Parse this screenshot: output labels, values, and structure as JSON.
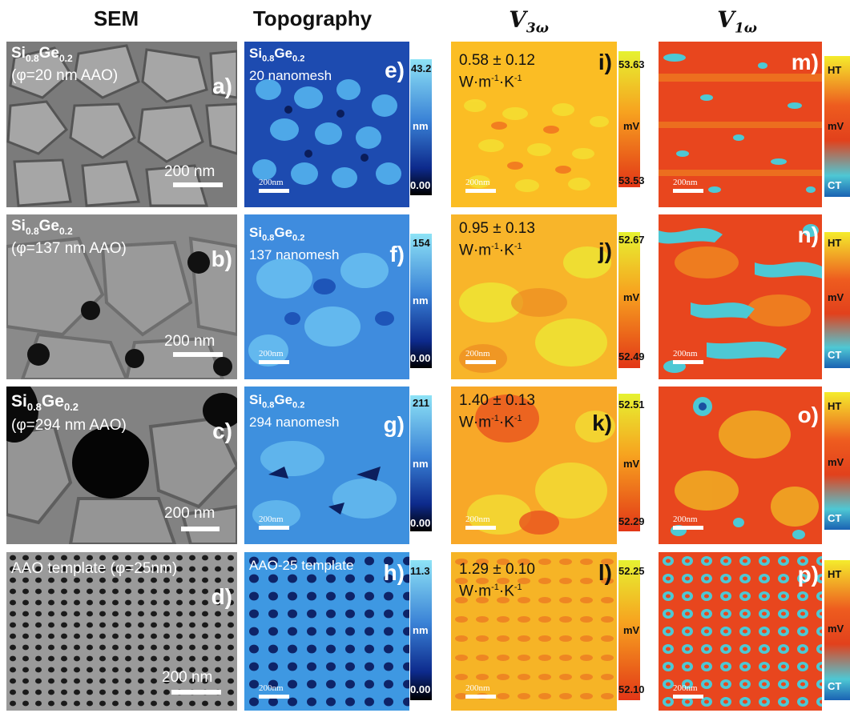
{
  "headers": {
    "sem": "SEM",
    "topo": "Topography",
    "v3_main": "V",
    "v3_sub": "3ω",
    "v1_main": "V",
    "v1_sub": "1ω"
  },
  "rows": [
    {
      "sem": {
        "label": "a)",
        "material_si": "Si",
        "si_sub": "0.8",
        "material_ge": "Ge",
        "ge_sub": "0.2",
        "desc": "(φ=20 nm AAO)",
        "scale": "200 nm"
      },
      "topo": {
        "label": "e)",
        "material_si": "Si",
        "si_sub": "0.8",
        "material_ge": "Ge",
        "ge_sub": "0.2",
        "desc": "20 nanomesh",
        "scale": "200nm",
        "cb_max": "43.2",
        "cb_unit": "nm",
        "cb_min": "0.00"
      },
      "v3": {
        "label": "i)",
        "value": "0.58 ± 0.12",
        "unit_pre": "W·m",
        "unit_sup1": "-1",
        "unit_mid": "·K",
        "unit_sup2": "-1",
        "scale": "200nm",
        "cb_max": "53.63",
        "cb_unit": "mV",
        "cb_min": "53.53"
      },
      "v1": {
        "label": "m)",
        "scale": "200nm",
        "cb_top": "HT",
        "cb_mid": "mV",
        "cb_bot": "CT"
      }
    },
    {
      "sem": {
        "label": "b)",
        "material_si": "Si",
        "si_sub": "0.8",
        "material_ge": "Ge",
        "ge_sub": "0.2",
        "desc": "(φ=137 nm AAO)",
        "scale": "200 nm"
      },
      "topo": {
        "label": "f)",
        "material_si": "Si",
        "si_sub": "0.8",
        "material_ge": "Ge",
        "ge_sub": "0.2",
        "desc": "137 nanomesh",
        "scale": "200nm",
        "cb_max": "154",
        "cb_unit": "nm",
        "cb_min": "0.00"
      },
      "v3": {
        "label": "j)",
        "value": "0.95 ± 0.13",
        "unit_pre": "W·m",
        "unit_sup1": "-1",
        "unit_mid": "·K",
        "unit_sup2": "-1",
        "scale": "200nm",
        "cb_max": "52.67",
        "cb_unit": "mV",
        "cb_min": "52.49"
      },
      "v1": {
        "label": "n)",
        "scale": "200nm",
        "cb_top": "HT",
        "cb_mid": "mV",
        "cb_bot": "CT"
      }
    },
    {
      "sem": {
        "label": "c)",
        "material_si": "Si",
        "si_sub": "0.8",
        "material_ge": "Ge",
        "ge_sub": "0.2",
        "desc": "(φ=294 nm AAO)",
        "scale": "200 nm"
      },
      "topo": {
        "label": "g)",
        "material_si": "Si",
        "si_sub": "0.8",
        "material_ge": "Ge",
        "ge_sub": "0.2",
        "desc": "294 nanomesh",
        "scale": "200nm",
        "cb_max": "211",
        "cb_unit": "nm",
        "cb_min": "0.00"
      },
      "v3": {
        "label": "k)",
        "value": "1.40 ± 0.13",
        "unit_pre": "W·m",
        "unit_sup1": "-1",
        "unit_mid": "·K",
        "unit_sup2": "-1",
        "scale": "200nm",
        "cb_max": "52.51",
        "cb_unit": "mV",
        "cb_min": "52.29"
      },
      "v1": {
        "label": "o)",
        "scale": "200nm",
        "cb_top": "HT",
        "cb_mid": "mV",
        "cb_bot": "CT"
      }
    },
    {
      "sem": {
        "label": "d)",
        "desc": "AAO template (φ=25nm)",
        "scale": "200 nm"
      },
      "topo": {
        "label": "h)",
        "desc": "AAO-25 template",
        "scale": "200nm",
        "cb_max": "11.3",
        "cb_unit": "nm",
        "cb_min": "0.00"
      },
      "v3": {
        "label": "l)",
        "value": "1.29 ± 0.10",
        "unit_pre": "W·m",
        "unit_sup1": "-1",
        "unit_mid": "·K",
        "unit_sup2": "-1",
        "scale": "200nm",
        "cb_max": "52.25",
        "cb_unit": "mV",
        "cb_min": "52.10"
      },
      "v1": {
        "label": "p)",
        "scale": "200nm",
        "cb_top": "HT",
        "cb_mid": "mV",
        "cb_bot": "CT"
      }
    }
  ],
  "colors": {
    "sem_bg": "#8c8c8c",
    "topo_dark": "#0a1d5a",
    "topo_light": "#6ec8f0",
    "v3_yellow": "#fff22e",
    "v3_red": "#e8441e",
    "v1_red": "#e8401e",
    "v1_cyan": "#49c9d6"
  }
}
